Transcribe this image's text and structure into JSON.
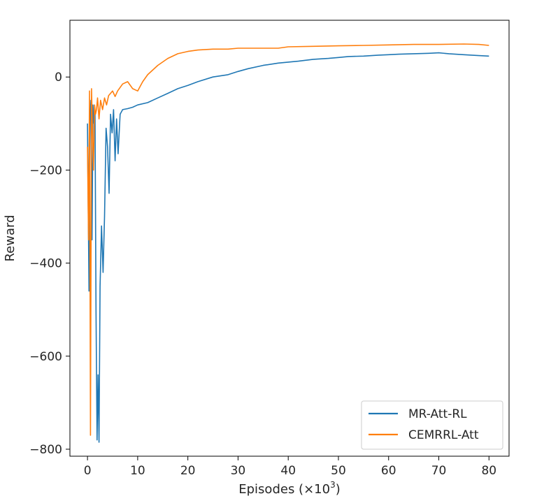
{
  "chart_data": {
    "type": "line",
    "xlabel": "Episodes (×10",
    "xlabel_sup": "3",
    "xlabel_close": ")",
    "ylabel": "Reward",
    "xlim": [
      -3.5,
      84
    ],
    "ylim": [
      -815,
      122
    ],
    "xticks": [
      0,
      10,
      20,
      30,
      40,
      50,
      60,
      70,
      80
    ],
    "xtick_labels": [
      "0",
      "10",
      "20",
      "30",
      "40",
      "50",
      "60",
      "70",
      "80"
    ],
    "yticks": [
      0,
      -200,
      -400,
      -600,
      -800
    ],
    "ytick_labels": [
      "0",
      "−200",
      "−400",
      "−600",
      "−800"
    ],
    "grid": false,
    "legend_position": "lower-right",
    "series": [
      {
        "name": "MR-Att-RL",
        "color": "#1f77b4",
        "x": [
          0,
          0.3,
          0.5,
          0.7,
          0.9,
          1.1,
          1.3,
          1.5,
          1.7,
          1.9,
          2.1,
          2.3,
          2.5,
          2.8,
          3.1,
          3.4,
          3.7,
          4.0,
          4.3,
          4.6,
          4.9,
          5.2,
          5.5,
          5.8,
          6.1,
          6.5,
          7,
          8,
          9,
          10,
          12,
          14,
          16,
          18,
          20,
          22,
          25,
          28,
          30,
          32,
          35,
          38,
          40,
          42,
          45,
          48,
          50,
          52,
          55,
          58,
          60,
          62,
          65,
          68,
          70,
          72,
          75,
          78,
          80
        ],
        "y": [
          -100,
          -460,
          -90,
          -50,
          -350,
          -60,
          -100,
          -80,
          -500,
          -780,
          -640,
          -785,
          -450,
          -320,
          -420,
          -300,
          -110,
          -150,
          -250,
          -80,
          -120,
          -70,
          -180,
          -90,
          -165,
          -80,
          -70,
          -68,
          -65,
          -60,
          -55,
          -45,
          -35,
          -25,
          -18,
          -10,
          0,
          5,
          12,
          18,
          25,
          30,
          32,
          34,
          38,
          40,
          42,
          44,
          45,
          47,
          48,
          49,
          50,
          51,
          52,
          50,
          48,
          46,
          45
        ]
      },
      {
        "name": "CEMRRL-Att",
        "color": "#ff7f0e",
        "x": [
          0,
          0.2,
          0.4,
          0.6,
          0.8,
          1.0,
          1.2,
          1.4,
          1.6,
          1.8,
          2.0,
          2.3,
          2.6,
          3.0,
          3.4,
          3.8,
          4.2,
          4.6,
          5.0,
          5.5,
          6,
          7,
          8,
          9,
          10,
          11,
          12,
          14,
          16,
          18,
          20,
          22,
          25,
          28,
          30,
          35,
          38,
          40,
          45,
          50,
          55,
          60,
          65,
          70,
          75,
          78,
          80
        ],
        "y": [
          -150,
          -350,
          -30,
          -770,
          -25,
          -120,
          -200,
          -60,
          -80,
          -70,
          -45,
          -90,
          -50,
          -70,
          -45,
          -60,
          -40,
          -35,
          -30,
          -42,
          -30,
          -15,
          -10,
          -25,
          -30,
          -10,
          5,
          25,
          40,
          50,
          55,
          58,
          60,
          60,
          62,
          62,
          62,
          65,
          66,
          67,
          68,
          69,
          70,
          70,
          71,
          70,
          68
        ]
      }
    ]
  }
}
